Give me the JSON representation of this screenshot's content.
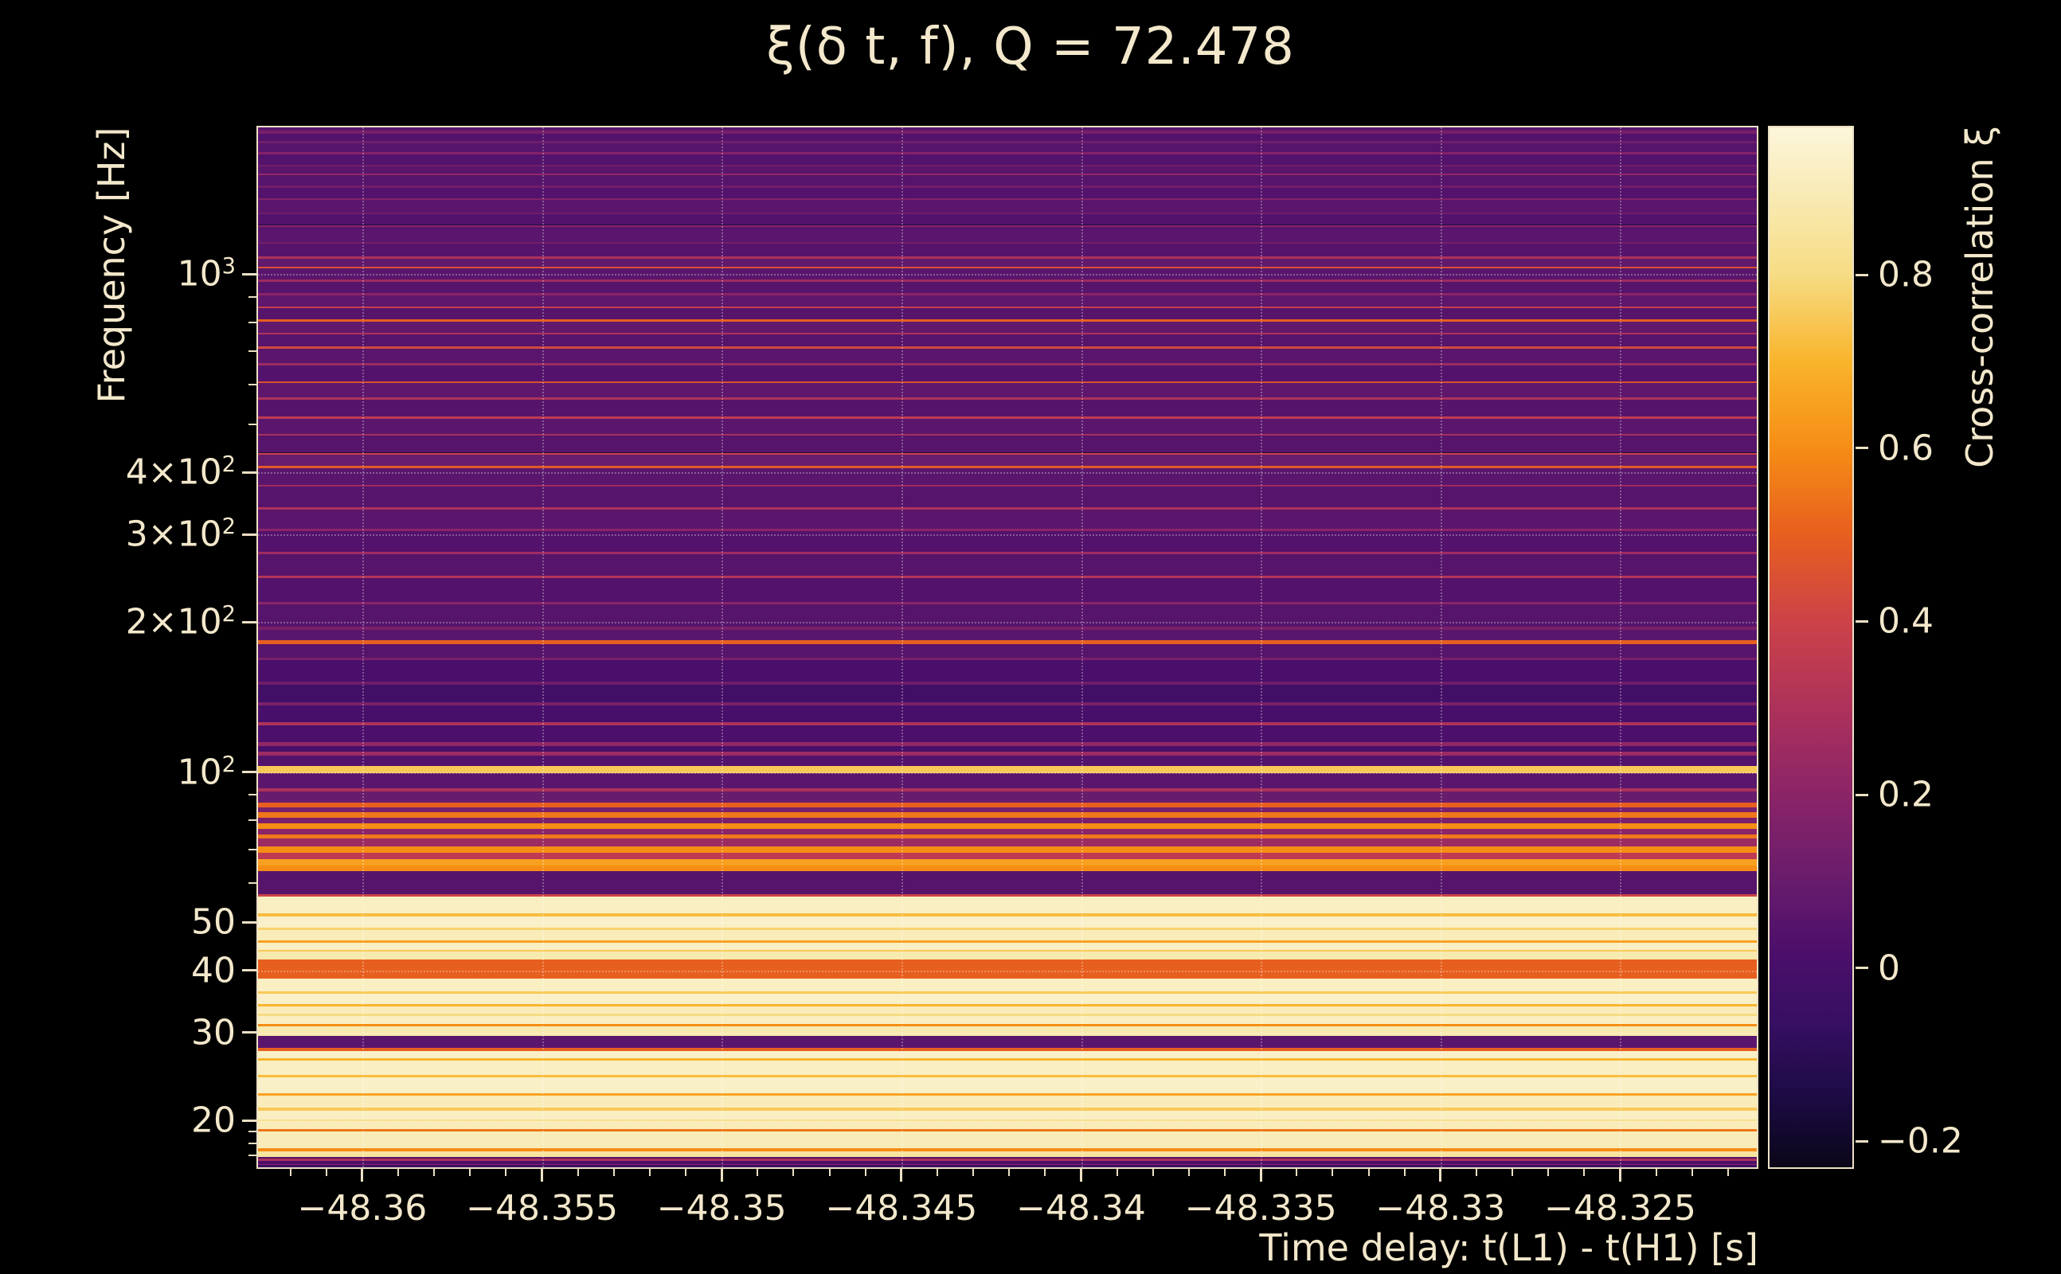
{
  "colors": {
    "background": "#000000",
    "text": "#f3e8cb",
    "frame": "#ece0c4",
    "grid": "rgba(255,255,255,0.30)"
  },
  "chart_data": {
    "type": "heatmap",
    "title": "ξ(δ t, f), Q = 72.478",
    "Q": 72.478,
    "xlabel": "Time delay: t(L1) - t(H1) [s]",
    "ylabel": "Frequency [Hz]",
    "colorbar_label": "Cross-correlation ξ",
    "x_range": [
      -48.3629,
      -48.3212
    ],
    "y_range_hz": [
      16.1,
      1970
    ],
    "y_scale": "log",
    "grid": {
      "vertical": true,
      "horizontal": true,
      "style": "dotted"
    },
    "color_range": [
      -0.23,
      0.97
    ],
    "x_ticks": [
      {
        "value": -48.36,
        "label": "−48.36"
      },
      {
        "value": -48.355,
        "label": "−48.355"
      },
      {
        "value": -48.35,
        "label": "−48.35"
      },
      {
        "value": -48.345,
        "label": "−48.345"
      },
      {
        "value": -48.34,
        "label": "−48.34"
      },
      {
        "value": -48.335,
        "label": "−48.335"
      },
      {
        "value": -48.33,
        "label": "−48.33"
      },
      {
        "value": -48.325,
        "label": "−48.325"
      }
    ],
    "x_minor": {
      "start": -48.362,
      "end": -48.322,
      "step": 0.001
    },
    "y_ticks": [
      {
        "value": 1000,
        "label": "10^3"
      },
      {
        "value": 400,
        "label": "4×10^2"
      },
      {
        "value": 300,
        "label": "3×10^2"
      },
      {
        "value": 200,
        "label": "2×10^2"
      },
      {
        "value": 100,
        "label": "10^2"
      },
      {
        "value": 50,
        "label": "50"
      },
      {
        "value": 40,
        "label": "40"
      },
      {
        "value": 30,
        "label": "30"
      },
      {
        "value": 20,
        "label": "20"
      }
    ],
    "y_minor_ticks": [
      900,
      800,
      700,
      600,
      500,
      90,
      80,
      70,
      60,
      19,
      18,
      17
    ],
    "colorbar_ticks": [
      {
        "value": 0.8,
        "label": "0.8"
      },
      {
        "value": 0.6,
        "label": "0.6"
      },
      {
        "value": 0.4,
        "label": "0.4"
      },
      {
        "value": 0.2,
        "label": "0.2"
      },
      {
        "value": 0.0,
        "label": "0"
      },
      {
        "value": -0.2,
        "label": "−0.2"
      }
    ],
    "colormap": [
      {
        "v": -0.23,
        "hex": "#0a0618"
      },
      {
        "v": -0.15,
        "hex": "#1c0b43"
      },
      {
        "v": -0.06,
        "hex": "#370f63"
      },
      {
        "v": 0.02,
        "hex": "#4c0f6b"
      },
      {
        "v": 0.1,
        "hex": "#681c6c"
      },
      {
        "v": 0.2,
        "hex": "#8b2468"
      },
      {
        "v": 0.3,
        "hex": "#ad325b"
      },
      {
        "v": 0.4,
        "hex": "#cc4248"
      },
      {
        "v": 0.5,
        "hex": "#e75f1f"
      },
      {
        "v": 0.6,
        "hex": "#f68d15"
      },
      {
        "v": 0.7,
        "hex": "#f9b42c"
      },
      {
        "v": 0.8,
        "hex": "#f6dc83"
      },
      {
        "v": 0.9,
        "hex": "#f9ecb9"
      },
      {
        "v": 0.97,
        "hex": "#fcf6d9"
      }
    ],
    "bands": [
      [
        2000,
        1940,
        0.06
      ],
      [
        1940,
        1915,
        0.14
      ],
      [
        1915,
        1850,
        0.04
      ],
      [
        1850,
        1830,
        0.12
      ],
      [
        1830,
        1755,
        0.05
      ],
      [
        1755,
        1740,
        0.18
      ],
      [
        1740,
        1660,
        0.04
      ],
      [
        1660,
        1645,
        0.12
      ],
      [
        1645,
        1590,
        0.06
      ],
      [
        1590,
        1578,
        0.22
      ],
      [
        1578,
        1505,
        0.05
      ],
      [
        1505,
        1490,
        0.12
      ],
      [
        1490,
        1420,
        0.04
      ],
      [
        1420,
        1408,
        0.17
      ],
      [
        1408,
        1330,
        0.06
      ],
      [
        1330,
        1318,
        0.12
      ],
      [
        1318,
        1255,
        0.04
      ],
      [
        1255,
        1244,
        0.2
      ],
      [
        1244,
        1160,
        0.06
      ],
      [
        1160,
        1150,
        0.13
      ],
      [
        1150,
        1085,
        0.05
      ],
      [
        1085,
        1072,
        0.3
      ],
      [
        1072,
        1035,
        0.08
      ],
      [
        1035,
        1026,
        0.45
      ],
      [
        1026,
        975,
        0.06
      ],
      [
        975,
        966,
        0.25
      ],
      [
        966,
        915,
        0.05
      ],
      [
        915,
        907,
        0.2
      ],
      [
        907,
        862,
        0.07
      ],
      [
        862,
        855,
        0.38
      ],
      [
        855,
        810,
        0.05
      ],
      [
        810,
        803,
        0.5
      ],
      [
        803,
        762,
        0.08
      ],
      [
        762,
        756,
        0.3
      ],
      [
        756,
        715,
        0.05
      ],
      [
        715,
        709,
        0.42
      ],
      [
        709,
        662,
        0.06
      ],
      [
        662,
        656,
        0.25
      ],
      [
        656,
        610,
        0.04
      ],
      [
        610,
        605,
        0.45
      ],
      [
        605,
        565,
        0.07
      ],
      [
        565,
        560,
        0.3
      ],
      [
        560,
        518,
        0.05
      ],
      [
        518,
        513,
        0.35
      ],
      [
        513,
        478,
        0.06
      ],
      [
        478,
        474,
        0.28
      ],
      [
        474,
        438,
        0.05
      ],
      [
        438,
        434,
        0.4
      ],
      [
        434,
        412,
        0.1
      ],
      [
        412,
        407,
        0.48
      ],
      [
        407,
        378,
        0.06
      ],
      [
        378,
        374,
        0.25
      ],
      [
        374,
        340,
        0.05
      ],
      [
        340,
        337,
        0.3
      ],
      [
        337,
        308,
        0.06
      ],
      [
        308,
        305,
        0.2
      ],
      [
        305,
        277,
        0.04
      ],
      [
        277,
        274,
        0.26
      ],
      [
        274,
        248,
        0.05
      ],
      [
        248,
        245,
        0.32
      ],
      [
        245,
        220,
        0.04
      ],
      [
        220,
        217,
        0.2
      ],
      [
        217,
        196,
        0.05
      ],
      [
        196,
        193,
        0.15
      ],
      [
        193,
        184,
        0.06
      ],
      [
        184,
        181,
        0.5
      ],
      [
        181,
        170,
        0.05
      ],
      [
        170,
        168,
        0.15
      ],
      [
        168,
        152,
        0.01
      ],
      [
        152,
        150,
        0.12
      ],
      [
        150,
        138,
        -0.02
      ],
      [
        138,
        136,
        0.15
      ],
      [
        136,
        126,
        0.0
      ],
      [
        126,
        124,
        0.3
      ],
      [
        124,
        115,
        0.02
      ],
      [
        115,
        113,
        0.22
      ],
      [
        113,
        110,
        0.0
      ],
      [
        110,
        108,
        0.25
      ],
      [
        108,
        103,
        0.04
      ],
      [
        103,
        99.5,
        0.75
      ],
      [
        99.5,
        93,
        0.06
      ],
      [
        93,
        91.5,
        0.3
      ],
      [
        91.5,
        87,
        0.1
      ],
      [
        87,
        85,
        0.5
      ],
      [
        85,
        83,
        0.15
      ],
      [
        83,
        81,
        0.55
      ],
      [
        81,
        79,
        0.15
      ],
      [
        79,
        77,
        0.6
      ],
      [
        77,
        75,
        0.2
      ],
      [
        75,
        73.5,
        0.55
      ],
      [
        73.5,
        71,
        0.25
      ],
      [
        71,
        69,
        0.6
      ],
      [
        69,
        67,
        0.35
      ],
      [
        67,
        65,
        0.65
      ],
      [
        65,
        63.2,
        0.6
      ],
      [
        63.2,
        56.8,
        0.05
      ],
      [
        56.8,
        56.2,
        0.4
      ],
      [
        56.2,
        52,
        0.92
      ],
      [
        52,
        51.3,
        0.72
      ],
      [
        51.3,
        48.8,
        0.93
      ],
      [
        48.8,
        48.3,
        0.78
      ],
      [
        48.3,
        46,
        0.9
      ],
      [
        46,
        45.5,
        0.65
      ],
      [
        45.5,
        44,
        0.92
      ],
      [
        44,
        43.6,
        0.75
      ],
      [
        43.6,
        42,
        0.88
      ],
      [
        42,
        38.5,
        0.5
      ],
      [
        38.5,
        36.3,
        0.92
      ],
      [
        36.3,
        35.9,
        0.75
      ],
      [
        35.9,
        34.2,
        0.93
      ],
      [
        34.2,
        33.9,
        0.7
      ],
      [
        33.9,
        32.7,
        0.9
      ],
      [
        32.7,
        32.4,
        0.8
      ],
      [
        32.4,
        31.2,
        0.92
      ],
      [
        31.2,
        30.9,
        0.6
      ],
      [
        30.9,
        29.5,
        0.88
      ],
      [
        29.5,
        28.0,
        0.06
      ],
      [
        28.0,
        27.6,
        0.5
      ],
      [
        27.6,
        26.7,
        0.93
      ],
      [
        26.7,
        26.4,
        0.7
      ],
      [
        26.4,
        24.7,
        0.92
      ],
      [
        24.7,
        24.4,
        0.72
      ],
      [
        24.4,
        22.7,
        0.93
      ],
      [
        22.7,
        22.4,
        0.65
      ],
      [
        22.4,
        21.2,
        0.9
      ],
      [
        21.2,
        20.9,
        0.75
      ],
      [
        20.9,
        20.1,
        0.92
      ],
      [
        20.1,
        19.9,
        0.8
      ],
      [
        19.9,
        19.2,
        0.9
      ],
      [
        19.2,
        19.0,
        0.55
      ],
      [
        19.0,
        17.6,
        0.9
      ],
      [
        17.6,
        17.3,
        0.6
      ],
      [
        17.3,
        16.9,
        0.85
      ],
      [
        16.9,
        16.75,
        0.05
      ],
      [
        16.75,
        16.6,
        0.3
      ],
      [
        16.6,
        16.35,
        0.02
      ],
      [
        16.35,
        16.25,
        0.2
      ],
      [
        16.25,
        16.0,
        -0.05
      ]
    ]
  }
}
